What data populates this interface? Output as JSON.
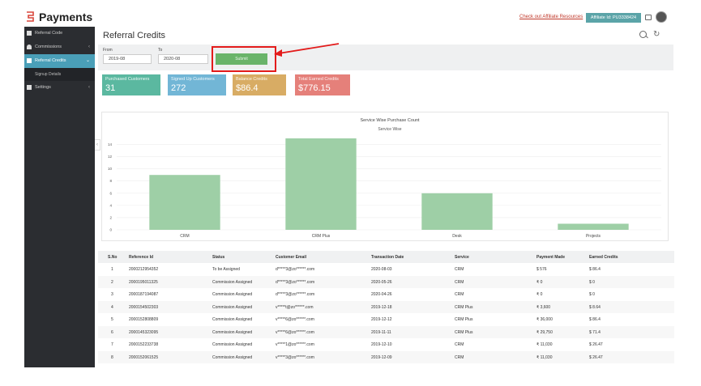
{
  "app": {
    "title": "Payments"
  },
  "header": {
    "affiliate_link": "Check out Affiliate Resources",
    "affiliate_id": "Affiliate Id: PU3338424"
  },
  "sidebar": {
    "items": [
      {
        "label": "Referral Code"
      },
      {
        "label": "Commissions"
      },
      {
        "label": "Referral Credits"
      },
      {
        "label": "Signup Details"
      },
      {
        "label": "Settings"
      }
    ]
  },
  "page": {
    "title": "Referral Credits"
  },
  "filters": {
    "from_label": "From",
    "from_value": "2019-08",
    "to_label": "To",
    "to_value": "2020-08",
    "submit_label": "Submit"
  },
  "cards": [
    {
      "title": "Purchased Customers",
      "value": "31",
      "color": "#5bb8a0"
    },
    {
      "title": "Signed Up Customers",
      "value": "272",
      "color": "#72b6d6"
    },
    {
      "title": "Balance Credits",
      "value": "$86.4",
      "color": "#d8ac64"
    },
    {
      "title": "Total Earned Credits",
      "value": "$776.15",
      "color": "#e5807a"
    }
  ],
  "chart_data": {
    "type": "bar",
    "title": "Service Wise Purchase Count",
    "subtitle": "Service Wise",
    "categories": [
      "CRM",
      "CRM Plus",
      "Desk",
      "Projects"
    ],
    "values": [
      9,
      15,
      6,
      1
    ],
    "ylim": [
      0,
      15
    ],
    "yticks": [
      0,
      2,
      4,
      6,
      8,
      10,
      12,
      14
    ],
    "color": "#9ecfa6",
    "grid": true
  },
  "table": {
    "headers": [
      "S.No",
      "Reference Id",
      "Status",
      "Customer Email",
      "Transaction Date",
      "Service",
      "Payment Made",
      "Earned Credits"
    ],
    "rows": [
      [
        "1",
        "2000212954352",
        "To be Assigned",
        "d*****3@zo******.com",
        "2020-08-03",
        "CRM",
        "$ 576",
        "$ 86.4"
      ],
      [
        "2",
        "2000195011325",
        "Commission Assigned",
        "d*****3@zo******.com",
        "2020-05-26",
        "CRM",
        "₹ 0",
        "$ 0"
      ],
      [
        "3",
        "2000187194087",
        "Commission Assigned",
        "d*****3@zo******.com",
        "2020-04-26",
        "CRM",
        "₹ 0",
        "$ 0"
      ],
      [
        "4",
        "2000154502303",
        "Commission Assigned",
        "v*****t@zo******.com",
        "2019-12-18",
        "CRM Plus",
        "₹ 3,600",
        "$ 8.64"
      ],
      [
        "5",
        "2000152808809",
        "Commission Assigned",
        "v*****6@zo******.com",
        "2019-12-12",
        "CRM Plus",
        "₹ 36,000",
        "$ 86.4"
      ],
      [
        "6",
        "2000145323095",
        "Commission Assigned",
        "v*****6@zo******.com",
        "2019-11-11",
        "CRM Plus",
        "₹ 29,750",
        "$ 71.4"
      ],
      [
        "7",
        "2000152233738",
        "Commission Assigned",
        "v*****1@zo******.com",
        "2019-12-10",
        "CRM",
        "₹ 11,030",
        "$ 26.47"
      ],
      [
        "8",
        "2000152061525",
        "Commission Assigned",
        "v*****3@zo******.com",
        "2019-12-09",
        "CRM",
        "₹ 11,030",
        "$ 26.47"
      ]
    ]
  },
  "colors": {
    "sidebar_bg": "#2b2d31",
    "active": "#4a9fb8",
    "highlight": "#e31b1b",
    "submit": "#6ab46a"
  }
}
